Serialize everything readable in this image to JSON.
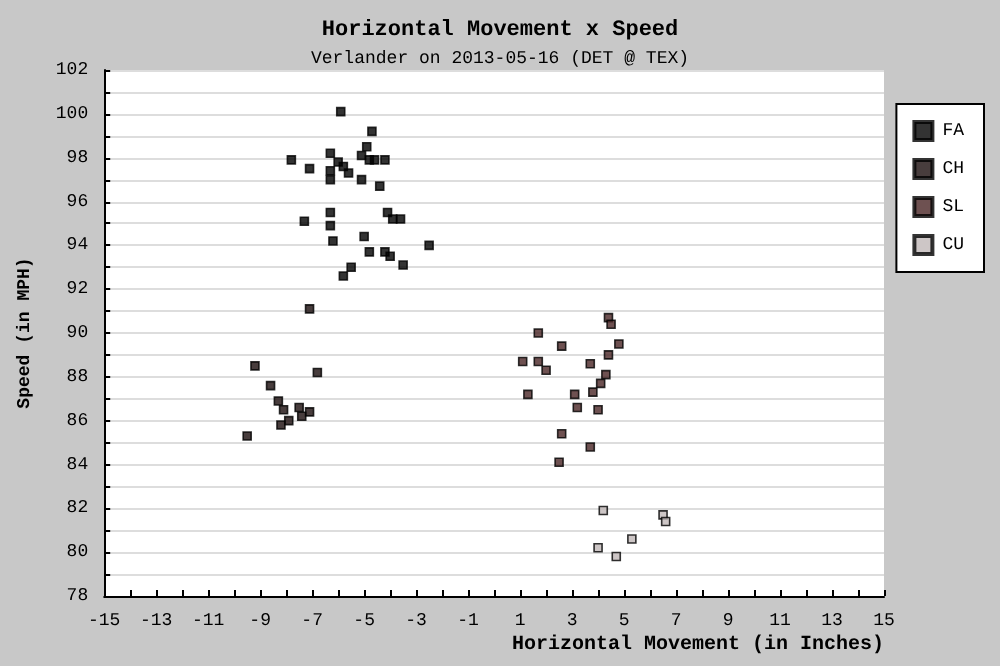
{
  "chart_data": {
    "type": "scatter",
    "title": "Horizontal Movement x Speed",
    "subtitle": "Verlander on 2013-05-16 (DET @ TEX)",
    "xlabel": "Horizontal Movement (in Inches)",
    "ylabel": "Speed (in MPH)",
    "xlim": [
      -15,
      15
    ],
    "xticks": [
      -15,
      -13,
      -11,
      -9,
      -7,
      -5,
      -3,
      -1,
      1,
      3,
      5,
      7,
      9,
      11,
      13,
      15
    ],
    "ylim": [
      78,
      102
    ],
    "yticks": [
      78,
      80,
      82,
      84,
      86,
      88,
      90,
      92,
      94,
      96,
      98,
      100,
      102
    ],
    "grid": "y",
    "legend": "right",
    "marker": "square",
    "series": [
      {
        "name": "FA",
        "color": "#000000",
        "x": [
          -5.9,
          -4.7,
          -4.9,
          -7.8,
          -7.1,
          -6.3,
          -6.0,
          -5.8,
          -5.6,
          -6.3,
          -6.3,
          -5.1,
          -4.8,
          -4.6,
          -4.2,
          -5.1,
          -4.4,
          -7.3,
          -6.3,
          -6.3,
          -6.2,
          -4.1,
          -3.9,
          -3.6,
          -5.0,
          -4.8,
          -4.2,
          -4.0,
          -3.5,
          -2.5,
          -5.5,
          -5.8
        ],
        "values": [
          100.1,
          99.2,
          98.5,
          97.9,
          97.5,
          98.2,
          97.8,
          97.6,
          97.3,
          97.4,
          97.0,
          98.1,
          97.9,
          97.9,
          97.9,
          97.0,
          96.7,
          95.1,
          95.5,
          94.9,
          94.2,
          95.5,
          95.2,
          95.2,
          94.4,
          93.7,
          93.7,
          93.5,
          93.1,
          94.0,
          93.0,
          92.6
        ]
      },
      {
        "name": "CH",
        "color": "#1a0d0d",
        "x": [
          -7.1,
          -9.2,
          -6.8,
          -8.6,
          -8.3,
          -8.1,
          -7.5,
          -7.1,
          -7.4,
          -7.9,
          -8.2,
          -9.5
        ],
        "values": [
          91.1,
          88.5,
          88.2,
          87.6,
          86.9,
          86.5,
          86.6,
          86.4,
          86.2,
          86.0,
          85.8,
          85.3
        ]
      },
      {
        "name": "SL",
        "color": "#4a2626",
        "x": [
          1.7,
          4.4,
          4.5,
          1.1,
          1.7,
          2.0,
          2.6,
          3.7,
          4.4,
          4.8,
          4.3,
          4.1,
          3.8,
          1.3,
          3.1,
          3.2,
          4.0,
          2.6,
          3.7,
          2.5
        ],
        "values": [
          90.0,
          90.7,
          90.4,
          88.7,
          88.7,
          88.3,
          89.4,
          88.6,
          89.0,
          89.5,
          88.1,
          87.7,
          87.3,
          87.2,
          87.2,
          86.6,
          86.5,
          85.4,
          84.8,
          84.1
        ]
      },
      {
        "name": "CU",
        "color": "#c0b8b8",
        "x": [
          4.2,
          6.5,
          6.6,
          5.3,
          4.0,
          4.7
        ],
        "values": [
          81.9,
          81.7,
          81.4,
          80.6,
          80.2,
          79.8
        ]
      }
    ]
  }
}
